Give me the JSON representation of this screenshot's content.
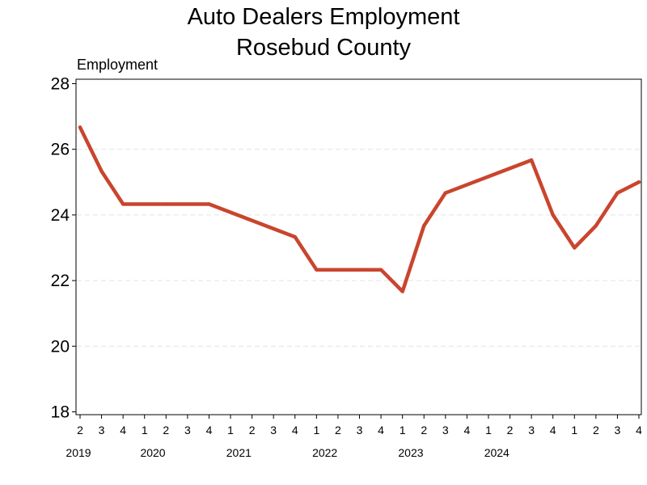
{
  "chart_data": {
    "type": "line",
    "title": [
      "Auto Dealers Employment",
      "Rosebud County"
    ],
    "ylabel": "Employment",
    "xlabel": "",
    "ylim": [
      18,
      28
    ],
    "yticks": [
      18,
      20,
      22,
      24,
      26,
      28
    ],
    "grid": true,
    "legend": "none",
    "series": [
      {
        "color": "#c9452e",
        "values": [
          26.67,
          25.33,
          24.33,
          24.33,
          24.33,
          23.33,
          22.33,
          22.33,
          22.33,
          21.67,
          23.67,
          24.67,
          25.67,
          24.0,
          23.0,
          23.67,
          24.67,
          25.0
        ],
        "x": [
          0,
          1,
          2,
          4,
          6,
          10,
          11,
          13,
          14,
          15,
          16,
          17,
          21,
          22,
          23,
          24,
          25,
          26
        ]
      }
    ],
    "x_quarters": [
      "2",
      "3",
      "4",
      "1",
      "2",
      "3",
      "4",
      "1",
      "2",
      "3",
      "4",
      "1",
      "2",
      "3",
      "4",
      "1",
      "2",
      "3",
      "4",
      "1",
      "2",
      "3",
      "4",
      "1",
      "2",
      "3",
      "4"
    ],
    "x_years": [
      {
        "label": "2019",
        "at": 0
      },
      {
        "label": "2020",
        "at": 3
      },
      {
        "label": "2021",
        "at": 7
      },
      {
        "label": "2022",
        "at": 11
      },
      {
        "label": "2023",
        "at": 15
      },
      {
        "label": "2024",
        "at": 19
      }
    ]
  }
}
